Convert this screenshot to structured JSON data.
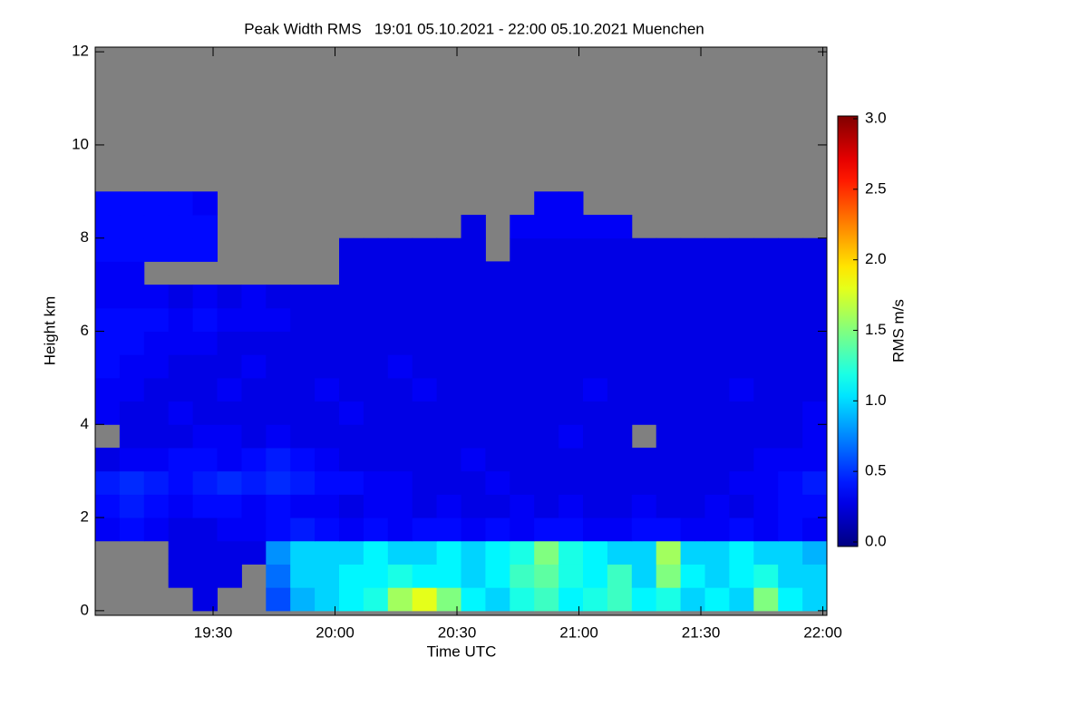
{
  "chart_data": {
    "type": "heatmap",
    "title": "Peak Width RMS   19:01 05.10.2021 - 22:00 05.10.2021 Muenchen",
    "x_label": "Time UTC",
    "y_label": "Height km",
    "colorbar_label": "RMS m/s",
    "xlim": [
      1141,
      1321
    ],
    "ylim": [
      -0.1,
      12.1
    ],
    "zlim": [
      0,
      3
    ],
    "xticks": [
      {
        "value": 1170,
        "label": "19:30"
      },
      {
        "value": 1200,
        "label": "20:00"
      },
      {
        "value": 1230,
        "label": "20:30"
      },
      {
        "value": 1260,
        "label": "21:00"
      },
      {
        "value": 1290,
        "label": "21:30"
      },
      {
        "value": 1320,
        "label": "22:00"
      }
    ],
    "yticks": [
      0,
      2,
      4,
      6,
      8,
      10,
      12
    ],
    "zticks": [
      {
        "value": 0,
        "label": "0.0"
      },
      {
        "value": 0.5,
        "label": "0.5"
      },
      {
        "value": 1,
        "label": "1.0"
      },
      {
        "value": 1.5,
        "label": "1.5"
      },
      {
        "value": 2,
        "label": "2.0"
      },
      {
        "value": 2.5,
        "label": "2.5"
      },
      {
        "value": 3,
        "label": "3.0"
      }
    ],
    "colormap": "jet",
    "missing_color": "#808080",
    "x": [
      1144,
      1150,
      1156,
      1162,
      1168,
      1174,
      1180,
      1186,
      1192,
      1198,
      1204,
      1210,
      1216,
      1222,
      1228,
      1234,
      1240,
      1246,
      1252,
      1258,
      1264,
      1270,
      1276,
      1282,
      1288,
      1294,
      1300,
      1306,
      1312,
      1318
    ],
    "y": [
      0.25,
      0.75,
      1.25,
      1.75,
      2.25,
      2.75,
      3.25,
      3.75,
      4.25,
      4.75,
      5.25,
      5.75,
      6.25,
      6.75,
      7.25,
      7.75,
      8.25,
      8.75
    ],
    "z": [
      [
        null,
        null,
        null,
        null,
        0.3,
        null,
        null,
        0.6,
        0.9,
        1.0,
        1.1,
        1.2,
        1.6,
        1.8,
        1.5,
        1.1,
        1.0,
        1.2,
        1.3,
        1.1,
        1.2,
        1.3,
        1.1,
        1.2,
        1.0,
        1.1,
        1.0,
        1.5,
        1.1,
        1.0
      ],
      [
        null,
        null,
        null,
        0.3,
        0.3,
        0.3,
        null,
        0.7,
        1.0,
        1.0,
        1.1,
        1.1,
        1.2,
        1.1,
        1.1,
        1.0,
        1.1,
        1.3,
        1.4,
        1.2,
        1.1,
        1.3,
        1.0,
        1.5,
        1.1,
        1.0,
        1.1,
        1.2,
        1.0,
        1.0
      ],
      [
        null,
        null,
        null,
        0.3,
        0.3,
        0.3,
        0.3,
        0.8,
        1.0,
        1.0,
        1.0,
        1.1,
        1.0,
        1.0,
        1.1,
        1.0,
        1.1,
        1.2,
        1.5,
        1.2,
        1.1,
        1.0,
        1.0,
        1.6,
        1.0,
        1.0,
        1.1,
        1.0,
        1.0,
        0.9
      ],
      [
        0.35,
        0.4,
        0.35,
        0.3,
        0.3,
        0.35,
        0.35,
        0.4,
        0.45,
        0.4,
        0.35,
        0.4,
        0.35,
        0.4,
        0.4,
        0.35,
        0.4,
        0.35,
        0.4,
        0.4,
        0.35,
        0.35,
        0.4,
        0.4,
        0.35,
        0.35,
        0.4,
        0.35,
        0.4,
        0.35
      ],
      [
        0.4,
        0.45,
        0.4,
        0.35,
        0.4,
        0.4,
        0.35,
        0.4,
        0.35,
        0.35,
        0.3,
        0.35,
        0.35,
        0.3,
        0.35,
        0.3,
        0.3,
        0.35,
        0.3,
        0.35,
        0.3,
        0.3,
        0.35,
        0.3,
        0.3,
        0.35,
        0.3,
        0.35,
        0.4,
        0.4
      ],
      [
        0.45,
        0.5,
        0.45,
        0.4,
        0.45,
        0.5,
        0.45,
        0.5,
        0.45,
        0.4,
        0.4,
        0.35,
        0.35,
        0.3,
        0.3,
        0.3,
        0.35,
        0.3,
        0.3,
        0.3,
        0.3,
        0.3,
        0.3,
        0.3,
        0.3,
        0.3,
        0.35,
        0.35,
        0.4,
        0.45
      ],
      [
        0.3,
        0.35,
        0.35,
        0.4,
        0.4,
        0.35,
        0.4,
        0.45,
        0.4,
        0.35,
        0.3,
        0.3,
        0.3,
        0.3,
        0.3,
        0.35,
        0.3,
        0.3,
        0.3,
        0.3,
        0.3,
        0.3,
        0.3,
        0.3,
        0.3,
        0.3,
        0.3,
        0.35,
        0.35,
        0.35
      ],
      [
        null,
        0.3,
        0.3,
        0.3,
        0.35,
        0.35,
        0.3,
        0.35,
        0.3,
        0.3,
        0.3,
        0.3,
        0.3,
        0.3,
        0.3,
        0.3,
        0.3,
        0.3,
        0.3,
        0.35,
        0.3,
        0.3,
        null,
        0.3,
        0.3,
        0.3,
        0.3,
        0.3,
        0.3,
        0.35
      ],
      [
        0.35,
        0.3,
        0.3,
        0.35,
        0.3,
        0.3,
        0.3,
        0.3,
        0.3,
        0.3,
        0.35,
        0.3,
        0.3,
        0.3,
        0.3,
        0.3,
        0.3,
        0.3,
        0.3,
        0.3,
        0.3,
        0.3,
        0.3,
        0.3,
        0.3,
        0.3,
        0.3,
        0.3,
        0.3,
        0.35
      ],
      [
        0.35,
        0.35,
        0.3,
        0.3,
        0.3,
        0.35,
        0.3,
        0.3,
        0.3,
        0.35,
        0.3,
        0.3,
        0.3,
        0.35,
        0.3,
        0.3,
        0.3,
        0.3,
        0.3,
        0.3,
        0.35,
        0.3,
        0.3,
        0.3,
        0.3,
        0.3,
        0.35,
        0.3,
        0.3,
        0.3
      ],
      [
        0.4,
        0.35,
        0.35,
        0.3,
        0.3,
        0.3,
        0.35,
        0.3,
        0.3,
        0.3,
        0.3,
        0.3,
        0.35,
        0.3,
        0.3,
        0.3,
        0.3,
        0.3,
        0.3,
        0.3,
        0.3,
        0.3,
        0.3,
        0.3,
        0.3,
        0.3,
        0.3,
        0.3,
        0.3,
        0.3
      ],
      [
        0.4,
        0.4,
        0.35,
        0.35,
        0.35,
        0.3,
        0.3,
        0.3,
        0.3,
        0.3,
        0.3,
        0.3,
        0.3,
        0.3,
        0.3,
        0.3,
        0.3,
        0.3,
        0.3,
        0.3,
        0.3,
        0.3,
        0.3,
        0.3,
        0.3,
        0.3,
        0.3,
        0.3,
        0.3,
        0.3
      ],
      [
        0.4,
        0.4,
        0.4,
        0.35,
        0.4,
        0.35,
        0.35,
        0.35,
        0.3,
        0.3,
        0.3,
        0.3,
        0.3,
        0.3,
        0.3,
        0.3,
        0.3,
        0.3,
        0.3,
        0.3,
        0.3,
        0.3,
        0.3,
        0.3,
        0.3,
        0.3,
        0.3,
        0.3,
        0.3,
        0.3
      ],
      [
        0.35,
        0.35,
        0.35,
        0.3,
        0.35,
        0.3,
        0.35,
        0.3,
        0.3,
        0.3,
        0.3,
        0.3,
        0.3,
        0.3,
        0.3,
        0.3,
        0.3,
        0.3,
        0.3,
        0.3,
        0.3,
        0.3,
        0.3,
        0.3,
        0.3,
        0.3,
        0.3,
        0.3,
        0.3,
        0.3
      ],
      [
        0.35,
        0.35,
        null,
        null,
        null,
        null,
        null,
        null,
        null,
        null,
        0.3,
        0.3,
        0.3,
        0.3,
        0.3,
        0.3,
        0.3,
        0.3,
        0.3,
        0.3,
        0.3,
        0.3,
        0.3,
        0.3,
        0.3,
        0.3,
        0.3,
        0.3,
        0.3,
        0.3
      ],
      [
        0.4,
        0.4,
        0.4,
        0.4,
        0.4,
        null,
        null,
        null,
        null,
        null,
        0.3,
        0.3,
        0.3,
        0.3,
        0.3,
        0.3,
        null,
        0.3,
        0.3,
        0.3,
        0.3,
        0.3,
        0.3,
        0.3,
        0.3,
        0.3,
        0.3,
        0.3,
        0.3,
        0.3
      ],
      [
        0.4,
        0.4,
        0.4,
        0.4,
        0.4,
        null,
        null,
        null,
        null,
        null,
        null,
        null,
        null,
        null,
        null,
        0.3,
        null,
        0.35,
        0.35,
        0.35,
        0.35,
        0.35,
        null,
        null,
        null,
        null,
        null,
        null,
        null,
        null
      ],
      [
        0.4,
        0.4,
        0.4,
        0.4,
        0.35,
        null,
        null,
        null,
        null,
        null,
        null,
        null,
        null,
        null,
        null,
        null,
        null,
        null,
        0.35,
        0.35,
        null,
        null,
        null,
        null,
        null,
        null,
        null,
        null,
        null,
        null
      ]
    ]
  }
}
